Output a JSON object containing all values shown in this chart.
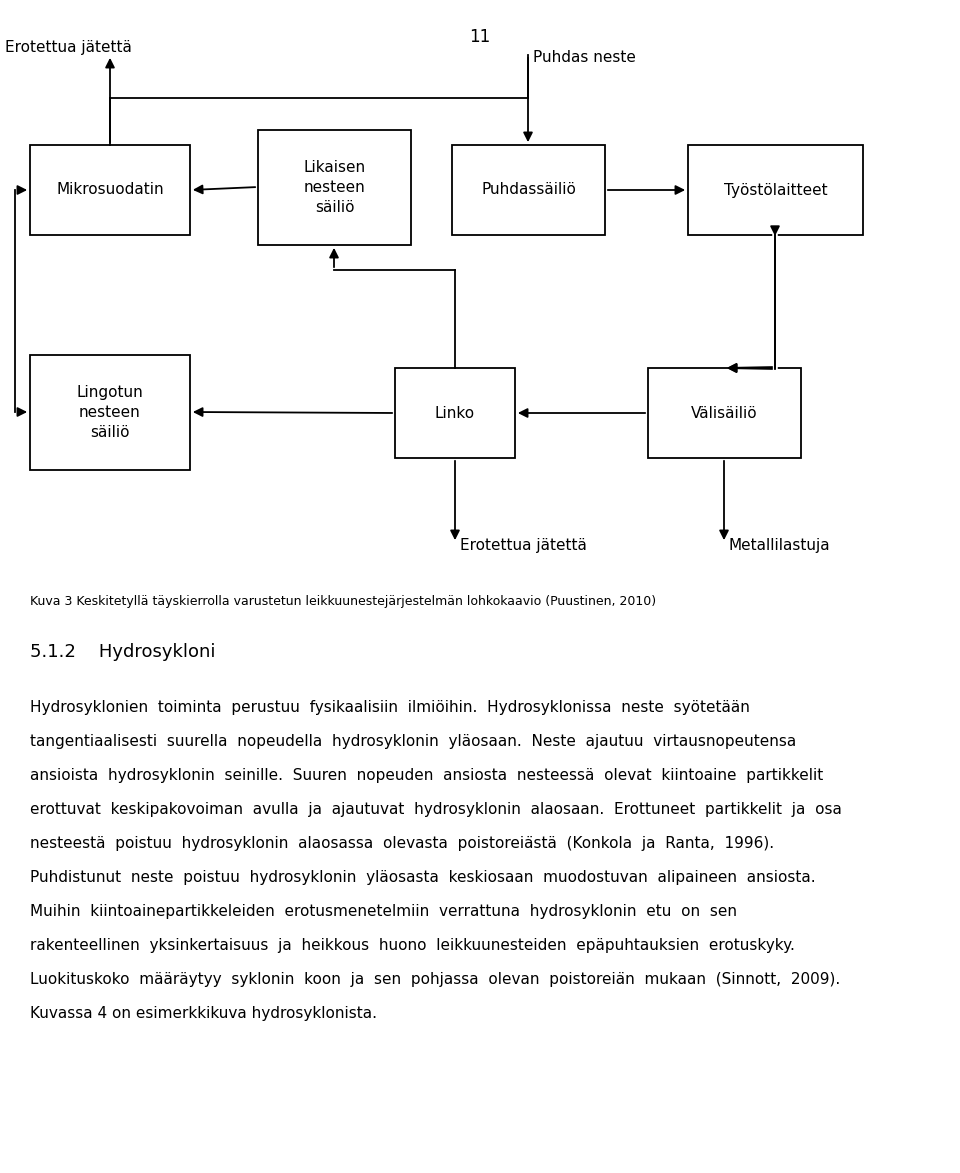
{
  "page_number": "11",
  "background_color": "#ffffff",
  "figure_caption": "Kuva 3 Keskitetyllä täyskierrolla varustetun leikkuunestejärjestelmän lohkokaavio (Puustinen, 2010)",
  "section_heading": "5.1.2    Hydrosykloni",
  "body_lines": [
    "Hydrosyklonien  toiminta  perustuu  fysikaalisiin  ilmiöihin.  Hydrosyklonissa  neste  syötetään",
    "tangentiaalisesti  suurella  nopeudella  hydrosyklonin  yläosaan.  Neste  ajautuu  virtausnopeutensa",
    "ansioista  hydrosyklonin  seinille.  Suuren  nopeuden  ansiosta  nesteessä  olevat  kiintoaine  partikkelit",
    "erottuvat  keskipakovoiman  avulla  ja  ajautuvat  hydrosyklonin  alaosaan.  Erottuneet  partikkelit  ja  osa",
    "nesteestä  poistuu  hydrosyklonin  alaosassa  olevasta  poistoreiästä  (Konkola  ja  Ranta,  1996).",
    "Puhdistunut  neste  poistuu  hydrosyklonin  yläosasta  keskiosaan  muodostuvan  alipaineen  ansiosta.",
    "Muihin  kiintoainepartikkeleiden  erotusmenetelmiin  verrattuna  hydrosyklonin  etu  on  sen",
    "rakenteellinen  yksinkertaisuus  ja  heikkous  huono  leikkuunesteiden  epäpuhtauksien  erotuskyky.",
    "Luokituskoko  määräytyy  syklonin  koon  ja  sen  pohjassa  olevan  poistoreiän  mukaan  (Sinnott,  2009).",
    "Kuvassa 4 on esimerkkikuva hydrosyklonista."
  ]
}
